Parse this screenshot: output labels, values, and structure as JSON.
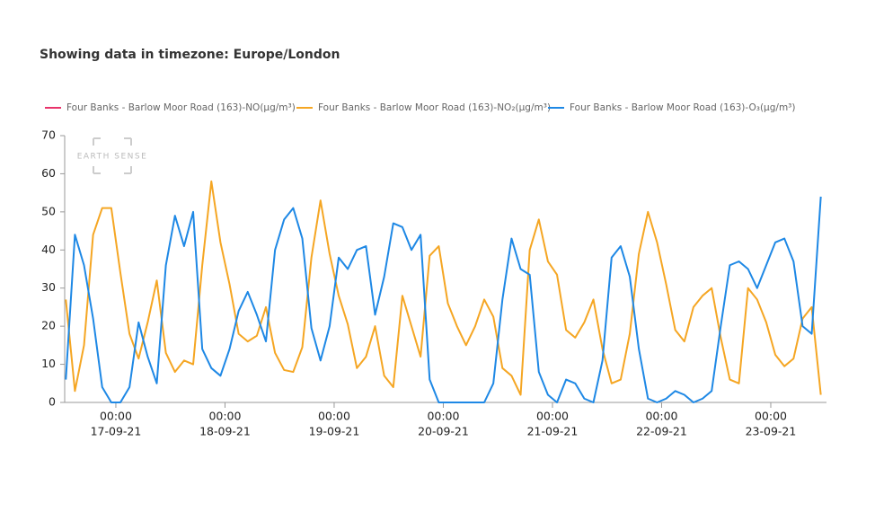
{
  "chart_data": {
    "type": "line",
    "title": "Showing data in timezone: Europe/London",
    "watermark": "EARTH SENSE",
    "x": [
      "2021-09-16T13:00",
      "2021-09-16T15:00",
      "2021-09-16T17:00",
      "2021-09-16T19:00",
      "2021-09-16T21:00",
      "2021-09-16T23:00",
      "2021-09-17T01:00",
      "2021-09-17T03:00",
      "2021-09-17T05:00",
      "2021-09-17T07:00",
      "2021-09-17T09:00",
      "2021-09-17T11:00",
      "2021-09-17T13:00",
      "2021-09-17T15:00",
      "2021-09-17T17:00",
      "2021-09-17T19:00",
      "2021-09-17T21:00",
      "2021-09-17T23:00",
      "2021-09-18T01:00",
      "2021-09-18T03:00",
      "2021-09-18T05:00",
      "2021-09-18T07:00",
      "2021-09-18T09:00",
      "2021-09-18T11:00",
      "2021-09-18T13:00",
      "2021-09-18T15:00",
      "2021-09-18T17:00",
      "2021-09-18T19:00",
      "2021-09-18T21:00",
      "2021-09-18T23:00",
      "2021-09-19T01:00",
      "2021-09-19T03:00",
      "2021-09-19T05:00",
      "2021-09-19T07:00",
      "2021-09-19T09:00",
      "2021-09-19T11:00",
      "2021-09-19T13:00",
      "2021-09-19T15:00",
      "2021-09-19T17:00",
      "2021-09-19T19:00",
      "2021-09-19T21:00",
      "2021-09-19T23:00",
      "2021-09-20T01:00",
      "2021-09-20T03:00",
      "2021-09-20T05:00",
      "2021-09-20T07:00",
      "2021-09-20T09:00",
      "2021-09-20T11:00",
      "2021-09-20T13:00",
      "2021-09-20T15:00",
      "2021-09-20T17:00",
      "2021-09-20T19:00",
      "2021-09-20T21:00",
      "2021-09-20T23:00",
      "2021-09-21T01:00",
      "2021-09-21T03:00",
      "2021-09-21T05:00",
      "2021-09-21T07:00",
      "2021-09-21T09:00",
      "2021-09-21T11:00",
      "2021-09-21T13:00",
      "2021-09-21T15:00",
      "2021-09-21T17:00",
      "2021-09-21T19:00",
      "2021-09-21T21:00",
      "2021-09-21T23:00",
      "2021-09-22T01:00",
      "2021-09-22T03:00",
      "2021-09-22T05:00",
      "2021-09-22T07:00",
      "2021-09-22T09:00",
      "2021-09-22T11:00",
      "2021-09-22T13:00",
      "2021-09-22T15:00",
      "2021-09-22T17:00",
      "2021-09-22T19:00",
      "2021-09-22T21:00",
      "2021-09-22T23:00",
      "2021-09-23T01:00",
      "2021-09-23T03:00",
      "2021-09-23T05:00",
      "2021-09-23T07:00",
      "2021-09-23T09:00",
      "2021-09-23T11:00"
    ],
    "series": [
      {
        "name": "Four Banks - Barlow Moor Road (163)-NO(µg/m³)",
        "color": "#e8336b",
        "values": [
          null,
          null,
          null,
          null,
          null,
          null,
          null,
          null,
          null,
          null,
          null,
          null,
          null,
          null,
          null,
          null,
          null,
          null,
          null,
          null,
          null,
          null,
          null,
          null,
          null,
          null,
          null,
          null,
          null,
          null,
          null,
          null,
          null,
          null,
          null,
          null,
          null,
          null,
          null,
          null,
          null,
          null,
          null,
          null,
          null,
          null,
          null,
          null,
          null,
          null,
          null,
          null,
          null,
          null,
          null,
          null,
          null,
          null,
          null,
          null,
          null,
          null,
          null,
          null,
          null,
          null,
          null,
          null,
          null,
          null,
          null,
          null,
          null,
          null,
          null,
          null,
          null,
          null,
          null,
          null,
          null,
          null,
          null,
          null
        ]
      },
      {
        "name": "Four Banks - Barlow Moor Road (163)-NO₂(µg/m³)",
        "color": "#f5a623",
        "values": [
          27,
          3,
          15,
          44,
          51,
          51,
          34,
          18,
          11.5,
          21,
          32,
          13,
          8,
          11,
          10,
          36,
          58,
          42,
          31,
          18,
          16,
          17.5,
          25,
          13,
          8.5,
          8,
          14.5,
          38,
          53,
          39,
          28,
          20.5,
          9,
          12,
          20,
          7,
          4,
          28,
          20,
          12,
          38.5,
          41,
          26,
          20,
          15,
          20,
          27,
          22.5,
          9,
          7,
          2,
          40,
          48,
          37,
          33.5,
          19,
          17,
          21,
          27,
          14,
          5,
          6,
          18,
          39,
          50,
          42,
          31,
          19,
          16,
          25,
          28,
          30,
          17,
          6,
          5,
          30,
          27,
          21,
          12.5,
          9.5,
          11.5,
          22,
          25,
          2
        ]
      },
      {
        "name": "Four Banks - Barlow Moor Road (163)-O₃(µg/m³)",
        "color": "#1e88e5",
        "values": [
          6,
          44,
          36,
          22,
          4,
          0,
          0,
          4,
          21,
          12,
          5,
          36,
          49,
          41,
          50,
          14,
          9,
          7,
          14,
          24,
          29,
          23,
          16,
          40,
          48,
          51,
          43,
          19.5,
          11,
          20,
          38,
          35,
          40,
          41,
          23,
          33,
          47,
          46,
          40,
          44,
          6,
          0,
          0,
          0,
          0,
          0,
          0,
          5,
          27,
          43,
          35,
          33.5,
          8,
          2,
          0,
          6,
          5,
          1,
          0,
          11,
          38,
          41,
          33,
          14,
          1,
          0,
          1,
          3,
          2,
          0,
          1,
          3,
          20,
          36,
          37,
          35,
          30,
          36,
          42,
          43,
          37,
          20,
          18,
          54
        ]
      }
    ],
    "xlim": [
      "2021-09-16T12:45",
      "2021-09-23T12:15"
    ],
    "xticks": [
      {
        "value": "2021-09-17T00:00",
        "label": [
          "00:00",
          "17-09-21"
        ]
      },
      {
        "value": "2021-09-18T00:00",
        "label": [
          "00:00",
          "18-09-21"
        ]
      },
      {
        "value": "2021-09-19T00:00",
        "label": [
          "00:00",
          "19-09-21"
        ]
      },
      {
        "value": "2021-09-20T00:00",
        "label": [
          "00:00",
          "20-09-21"
        ]
      },
      {
        "value": "2021-09-21T00:00",
        "label": [
          "00:00",
          "21-09-21"
        ]
      },
      {
        "value": "2021-09-22T00:00",
        "label": [
          "00:00",
          "22-09-21"
        ]
      },
      {
        "value": "2021-09-23T00:00",
        "label": [
          "00:00",
          "23-09-21"
        ]
      }
    ],
    "ylim": [
      0,
      70
    ],
    "yticks": [
      0,
      10,
      20,
      30,
      40,
      50,
      60,
      70
    ],
    "grid": false,
    "legend": "top"
  }
}
